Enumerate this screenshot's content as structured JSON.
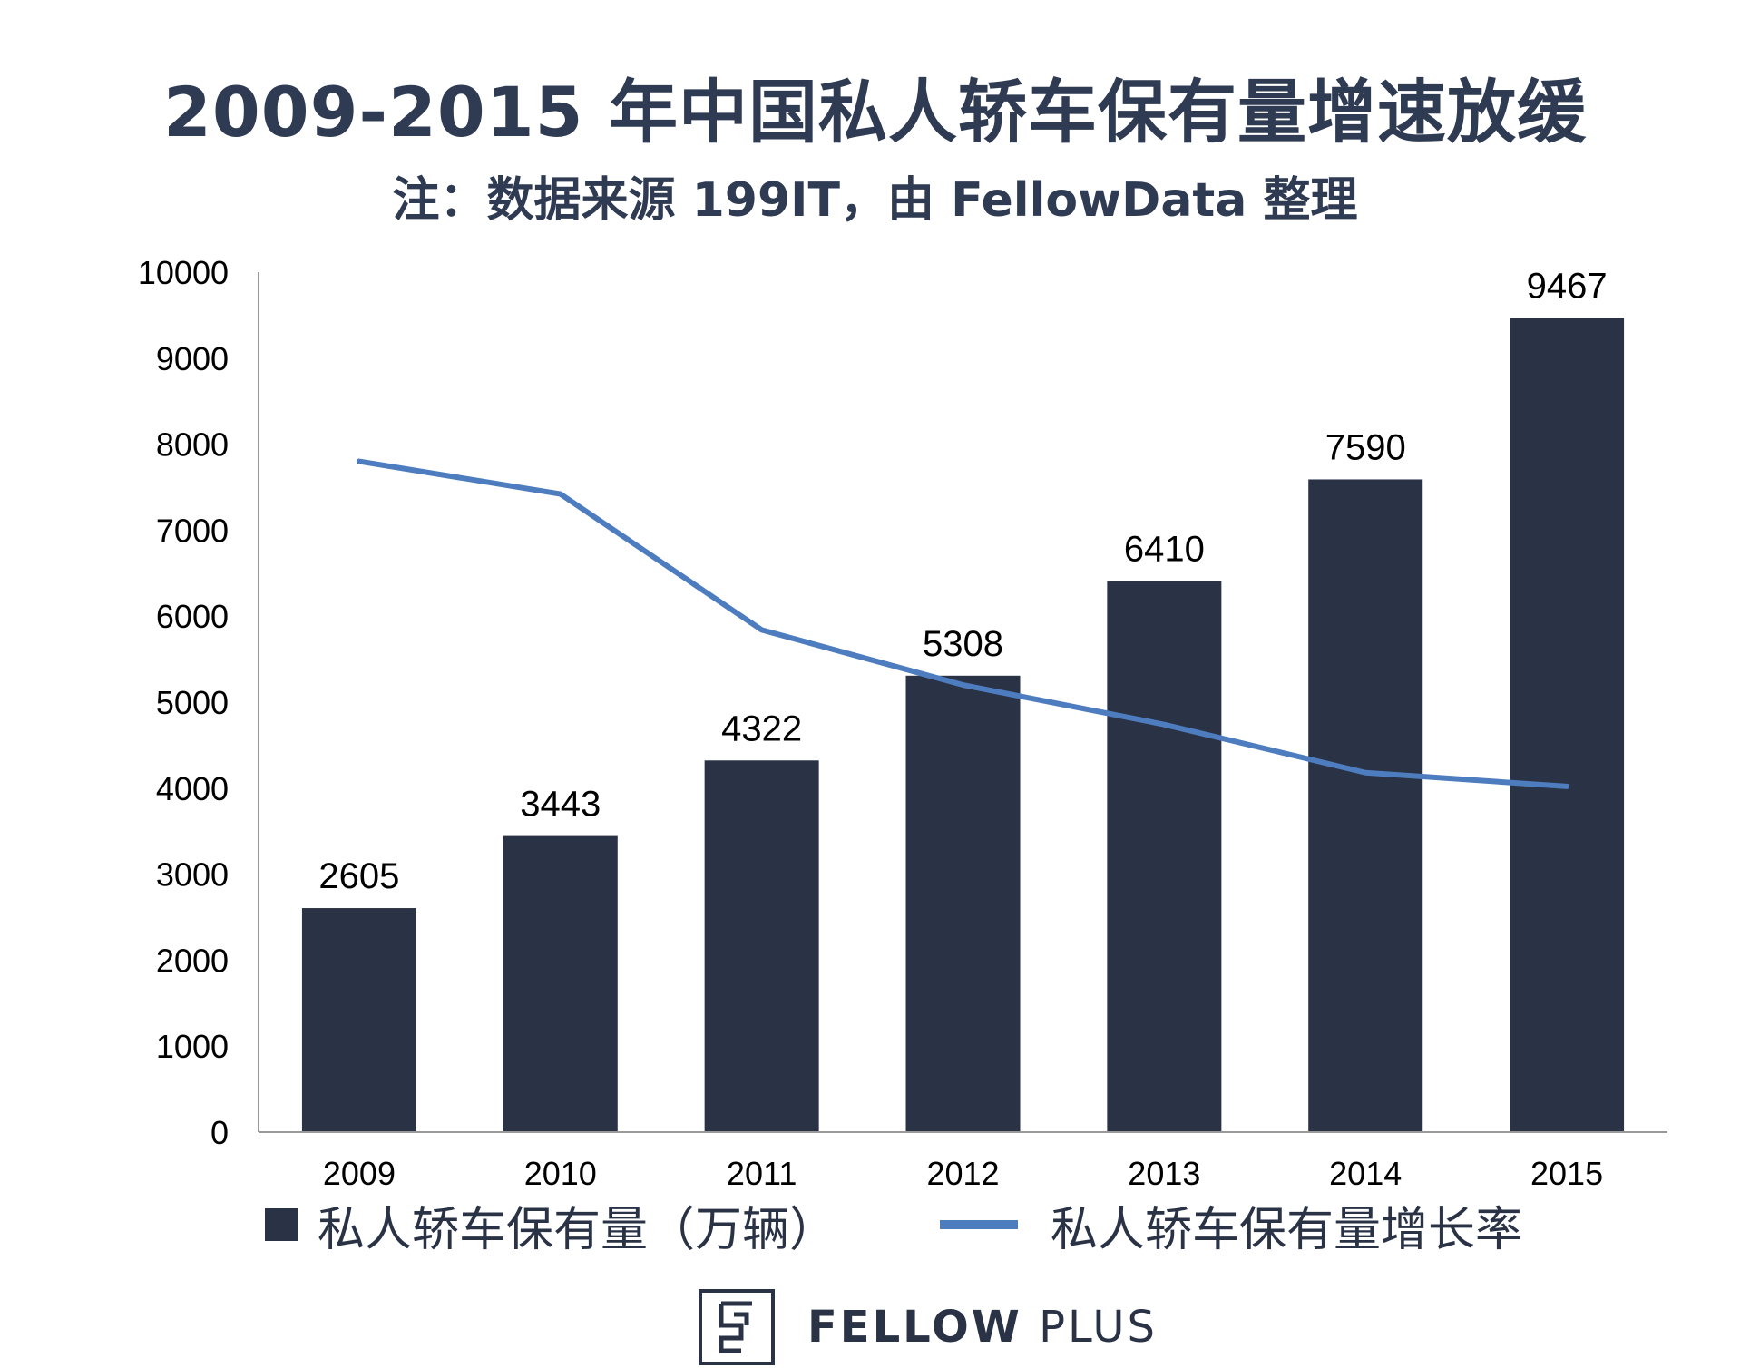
{
  "chart_data": {
    "type": "bar",
    "title": "2009-2015 年中国私人轿车保有量增速放缓",
    "subtitle": "注：数据来源 199IT，由 FellowData 整理",
    "categories": [
      "2009",
      "2010",
      "2011",
      "2012",
      "2013",
      "2014",
      "2015"
    ],
    "y_ticks": [
      "0",
      "1000",
      "2000",
      "3000",
      "4000",
      "5000",
      "6000",
      "7000",
      "8000",
      "9000",
      "10000"
    ],
    "ylim": [
      0,
      10000
    ],
    "series": [
      {
        "name": "私人轿车保有量（万辆）",
        "type": "bar",
        "values": [
          2605,
          3443,
          4322,
          5308,
          6410,
          7590,
          9467
        ],
        "labels": [
          "2605",
          "3443",
          "4322",
          "5308",
          "6410",
          "7590",
          "9467"
        ]
      },
      {
        "name": "私人轿车保有量增长率",
        "type": "line",
        "values_on_primary_axis": [
          7800,
          7420,
          5840,
          5200,
          4740,
          4180,
          4020
        ]
      }
    ],
    "grid": false,
    "legend": "bottom"
  },
  "colors": {
    "bar": "#2a3245",
    "line": "#4d7cbf",
    "text": "#2f3b52",
    "axis": "#999999"
  },
  "brand": {
    "bold": "FELLOW",
    "light": "PLUS",
    "logo_icon": "fellow-plus-logo-icon"
  }
}
